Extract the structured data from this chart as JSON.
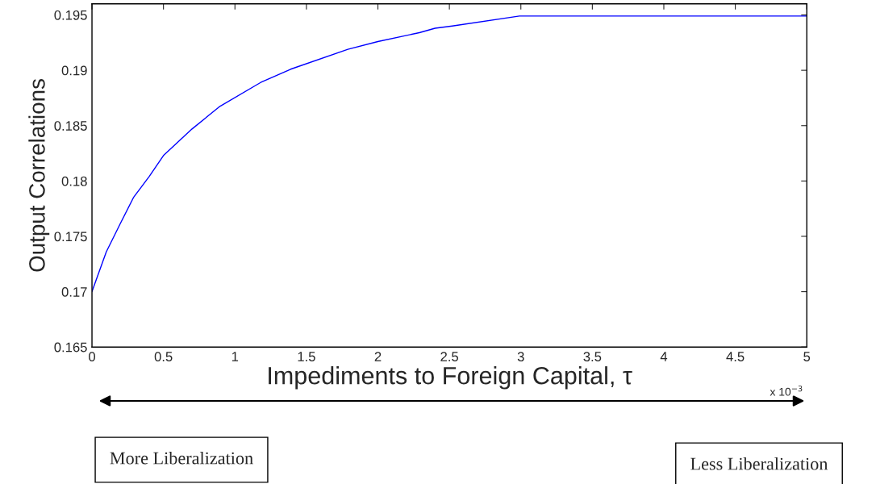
{
  "chart_data": {
    "type": "line",
    "xlabel": "Impediments to Foreign Capital, τ",
    "ylabel": "Output Correlations",
    "x": [
      0,
      0.1,
      0.2,
      0.29,
      0.4,
      0.5,
      0.6,
      0.7,
      0.89,
      1.18,
      1.39,
      1.79,
      2.0,
      2.29,
      2.4,
      2.52,
      2.99,
      5
    ],
    "series": [
      {
        "color": "#0000ff",
        "values": [
          0.17,
          0.1736,
          0.1762,
          0.1785,
          0.1804,
          0.1823,
          0.1835,
          0.1847,
          0.1867,
          0.1889,
          0.1901,
          0.1919,
          0.1926,
          0.1934,
          0.1938,
          0.194,
          0.1949,
          0.1949
        ]
      }
    ],
    "xlim": [
      0,
      5
    ],
    "xticks": [
      0,
      0.5,
      1,
      1.5,
      2,
      2.5,
      3,
      3.5,
      4,
      4.5,
      5
    ],
    "ylim": [
      0.165,
      0.196
    ],
    "yticks": [
      0.165,
      0.17,
      0.175,
      0.18,
      0.185,
      0.19,
      0.195
    ],
    "grid": false,
    "marker": "none",
    "line_style": "solid",
    "annotations": [
      "x 10$^{−3}$",
      "More Liberalization",
      "Less Liberalization"
    ]
  }
}
